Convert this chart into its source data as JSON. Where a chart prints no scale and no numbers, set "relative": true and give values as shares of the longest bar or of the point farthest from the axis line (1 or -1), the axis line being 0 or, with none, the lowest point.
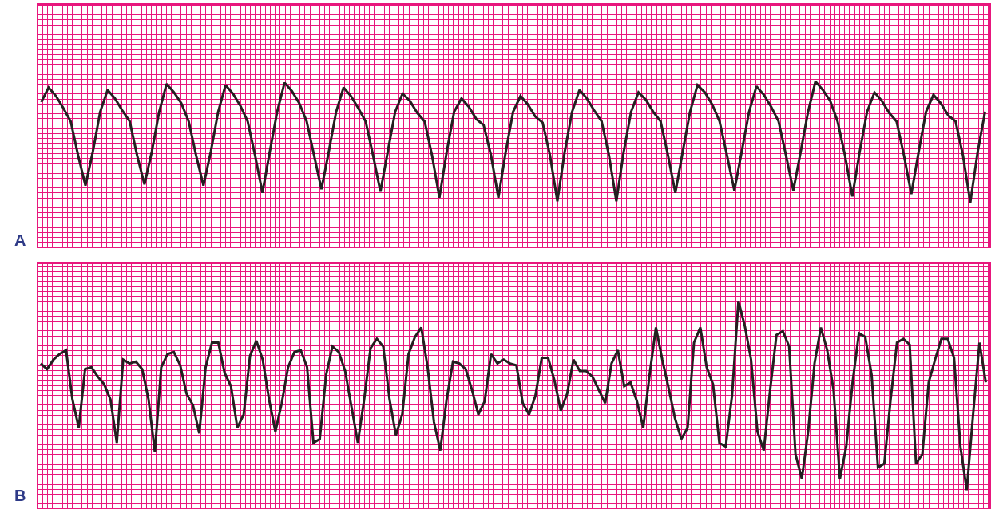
{
  "chart_data": [
    {
      "type": "line",
      "title": "A",
      "relative": true,
      "grid": true,
      "legend": false,
      "marker": "none",
      "line_style": "solid",
      "categories": [
        null,
        null,
        null,
        null,
        null,
        null,
        null,
        null,
        null,
        null,
        null,
        null,
        null,
        null,
        null,
        null,
        null,
        null,
        null,
        null,
        null,
        null,
        null,
        null,
        null,
        null,
        null,
        null,
        null,
        null,
        null,
        null,
        null,
        null,
        null,
        null,
        null,
        null,
        null,
        null,
        null,
        null,
        null,
        null,
        null,
        null,
        null,
        null,
        null,
        null,
        null,
        null,
        null,
        null,
        null,
        null,
        null,
        null,
        null,
        null,
        null,
        null,
        null,
        null,
        null,
        null,
        null,
        null,
        null,
        null,
        null,
        null,
        null,
        null,
        null,
        null,
        null,
        null,
        null,
        null,
        null,
        null,
        null,
        null,
        null,
        null,
        null,
        null,
        null,
        null,
        null,
        null,
        null,
        null,
        null,
        null,
        null,
        null,
        null,
        null,
        null,
        null,
        null,
        null,
        null,
        null,
        null,
        null,
        null,
        null,
        null,
        null,
        null,
        null,
        null,
        null,
        null,
        null,
        null,
        null,
        null,
        null,
        null,
        null,
        null,
        null,
        null,
        null,
        null
      ],
      "series": [
        {
          "color": "#231f20",
          "values": [
            0.83,
            0.95,
            0.88,
            0.78,
            0.67,
            0.39,
            0.14,
            0.42,
            0.75,
            0.93,
            0.86,
            0.76,
            0.67,
            0.39,
            0.15,
            0.42,
            0.75,
            0.98,
            0.91,
            0.82,
            0.67,
            0.39,
            0.14,
            0.42,
            0.75,
            0.97,
            0.9,
            0.8,
            0.67,
            0.39,
            0.08,
            0.42,
            0.75,
            0.99,
            0.92,
            0.82,
            0.67,
            0.39,
            0.11,
            0.42,
            0.75,
            0.95,
            0.88,
            0.78,
            0.67,
            0.39,
            0.09,
            0.42,
            0.75,
            0.9,
            0.84,
            0.74,
            0.67,
            0.39,
            0.04,
            0.42,
            0.75,
            0.86,
            0.79,
            0.69,
            0.64,
            0.39,
            0.04,
            0.42,
            0.75,
            0.88,
            0.81,
            0.71,
            0.66,
            0.39,
            0.01,
            0.42,
            0.75,
            0.93,
            0.86,
            0.76,
            0.67,
            0.39,
            0.01,
            0.42,
            0.75,
            0.91,
            0.85,
            0.75,
            0.67,
            0.39,
            0.08,
            0.42,
            0.75,
            0.97,
            0.91,
            0.81,
            0.67,
            0.39,
            0.1,
            0.42,
            0.75,
            0.96,
            0.89,
            0.79,
            0.67,
            0.39,
            0.1,
            0.42,
            0.75,
            1,
            0.93,
            0.84,
            0.67,
            0.39,
            0.05,
            0.42,
            0.75,
            0.91,
            0.84,
            0.74,
            0.67,
            0.39,
            0.07,
            0.42,
            0.75,
            0.89,
            0.82,
            0.72,
            0.67,
            0.39,
            0,
            0.42,
            0.75
          ]
        }
      ]
    },
    {
      "type": "line",
      "title": "B",
      "relative": true,
      "grid": true,
      "legend": false,
      "marker": "none",
      "line_style": "solid",
      "categories": [
        null,
        null,
        null,
        null,
        null,
        null,
        null,
        null,
        null,
        null,
        null,
        null,
        null,
        null,
        null,
        null,
        null,
        null,
        null,
        null,
        null,
        null,
        null,
        null,
        null,
        null,
        null,
        null,
        null,
        null,
        null,
        null,
        null,
        null,
        null,
        null,
        null,
        null,
        null,
        null,
        null,
        null,
        null,
        null,
        null,
        null,
        null,
        null,
        null,
        null,
        null,
        null,
        null,
        null,
        null,
        null,
        null,
        null,
        null,
        null,
        null,
        null,
        null,
        null,
        null,
        null,
        null,
        null,
        null,
        null,
        null,
        null,
        null,
        null,
        null,
        null,
        null,
        null,
        null,
        null,
        null,
        null,
        null,
        null,
        null,
        null,
        null,
        null,
        null,
        null,
        null,
        null,
        null,
        null,
        null,
        null,
        null,
        null,
        null,
        null,
        null,
        null,
        null,
        null,
        null,
        null,
        null,
        null,
        null,
        null,
        null,
        null,
        null,
        null,
        null,
        null,
        null,
        null,
        null,
        null,
        null,
        null,
        null,
        null,
        null,
        null,
        null,
        null,
        null,
        null,
        null,
        null,
        null,
        null,
        null,
        null,
        null,
        null,
        null,
        null,
        null,
        null,
        null,
        null,
        null,
        null,
        null,
        null,
        null,
        null
      ],
      "series": [
        {
          "color": "#231f20",
          "values": [
            0.67,
            0.64,
            0.69,
            0.72,
            0.74,
            0.48,
            0.33,
            0.64,
            0.65,
            0.6,
            0.56,
            0.48,
            0.25,
            0.69,
            0.67,
            0.68,
            0.64,
            0.48,
            0.2,
            0.65,
            0.72,
            0.73,
            0.66,
            0.51,
            0.45,
            0.3,
            0.65,
            0.78,
            0.78,
            0.62,
            0.55,
            0.33,
            0.4,
            0.71,
            0.79,
            0.69,
            0.48,
            0.31,
            0.46,
            0.65,
            0.73,
            0.74,
            0.65,
            0.25,
            0.27,
            0.61,
            0.76,
            0.73,
            0.63,
            0.44,
            0.25,
            0.48,
            0.75,
            0.8,
            0.76,
            0.48,
            0.29,
            0.4,
            0.72,
            0.81,
            0.86,
            0.65,
            0.36,
            0.21,
            0.48,
            0.68,
            0.67,
            0.64,
            0.53,
            0.4,
            0.47,
            0.72,
            0.67,
            0.69,
            0.67,
            0.66,
            0.46,
            0.4,
            0.5,
            0.7,
            0.7,
            0.58,
            0.42,
            0.51,
            0.69,
            0.63,
            0.63,
            0.6,
            0.53,
            0.46,
            0.67,
            0.74,
            0.55,
            0.57,
            0.47,
            0.33,
            0.61,
            0.86,
            0.69,
            0.54,
            0.38,
            0.27,
            0.33,
            0.78,
            0.86,
            0.65,
            0.56,
            0.25,
            0.23,
            0.5,
            1,
            0.87,
            0.69,
            0.31,
            0.21,
            0.53,
            0.82,
            0.84,
            0.76,
            0.19,
            0.06,
            0.31,
            0.67,
            0.86,
            0.74,
            0.53,
            0.06,
            0.23,
            0.57,
            0.83,
            0.81,
            0.61,
            0.12,
            0.14,
            0.48,
            0.78,
            0.8,
            0.77,
            0.14,
            0.19,
            0.57,
            0.69,
            0.8,
            0.8,
            0.7,
            0.23,
            0,
            0.4,
            0.78,
            0.57
          ]
        }
      ]
    }
  ]
}
